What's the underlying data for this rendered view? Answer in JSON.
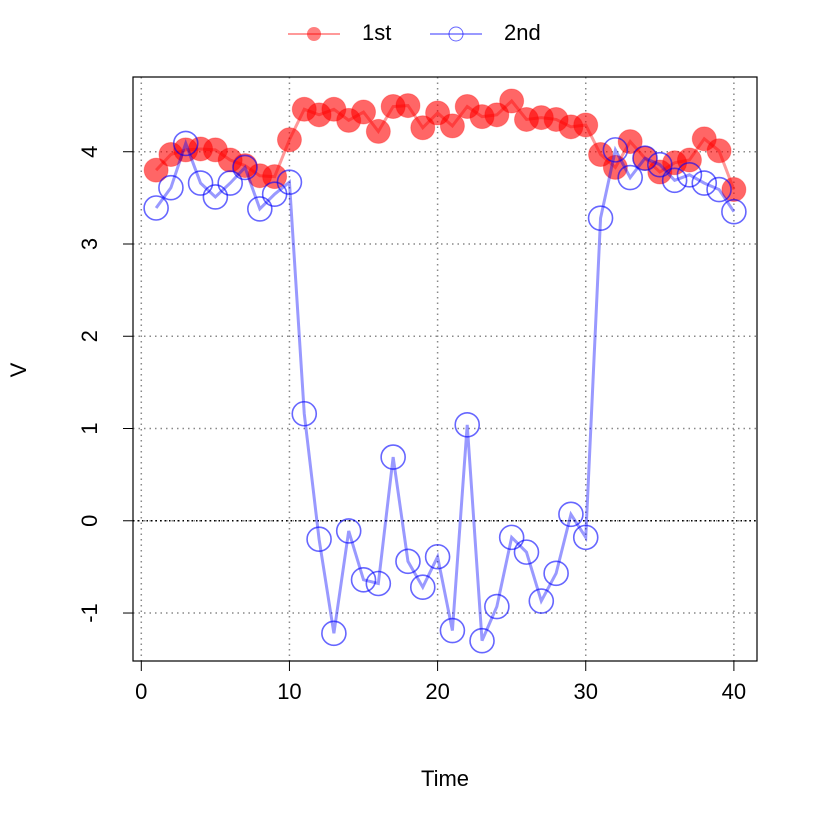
{
  "chart_data": {
    "type": "line",
    "x_label": "Time",
    "y_label": "V",
    "x": [
      1,
      2,
      3,
      4,
      5,
      6,
      7,
      8,
      9,
      10,
      11,
      12,
      13,
      14,
      15,
      16,
      17,
      18,
      19,
      20,
      21,
      22,
      23,
      24,
      25,
      26,
      27,
      28,
      29,
      30,
      31,
      32,
      33,
      34,
      35,
      36,
      37,
      38,
      39,
      40
    ],
    "series": [
      {
        "name": "1st",
        "color": "#ff0000",
        "marker": "filled",
        "values": [
          3.8,
          3.97,
          4.02,
          4.03,
          4.02,
          3.91,
          3.85,
          3.74,
          3.73,
          4.13,
          4.46,
          4.4,
          4.46,
          4.34,
          4.43,
          4.22,
          4.49,
          4.5,
          4.26,
          4.42,
          4.28,
          4.49,
          4.38,
          4.4,
          4.55,
          4.35,
          4.37,
          4.35,
          4.27,
          4.29,
          3.97,
          3.83,
          4.11,
          3.93,
          3.78,
          3.88,
          3.91,
          4.14,
          4.01,
          3.59
        ]
      },
      {
        "name": "2nd",
        "color": "#0000ff",
        "marker": "open",
        "values": [
          3.39,
          3.61,
          4.09,
          3.66,
          3.51,
          3.66,
          3.83,
          3.38,
          3.54,
          3.67,
          1.16,
          -0.2,
          -1.22,
          -0.11,
          -0.64,
          -0.68,
          0.69,
          -0.44,
          -0.72,
          -0.39,
          -1.19,
          1.04,
          -1.3,
          -0.93,
          -0.18,
          -0.34,
          -0.87,
          -0.57,
          0.07,
          -0.18,
          3.28,
          4.02,
          3.72,
          3.93,
          3.86,
          3.69,
          3.75,
          3.66,
          3.59,
          3.35
        ]
      }
    ],
    "xlim": [
      -0.56,
      41.56
    ],
    "ylim": [
      -1.52,
      4.81
    ],
    "xticks": [
      0,
      10,
      20,
      30,
      40
    ],
    "yticks": [
      -1,
      0,
      1,
      2,
      3,
      4
    ],
    "grid": true,
    "hlines": [
      0
    ],
    "legend": "top"
  }
}
